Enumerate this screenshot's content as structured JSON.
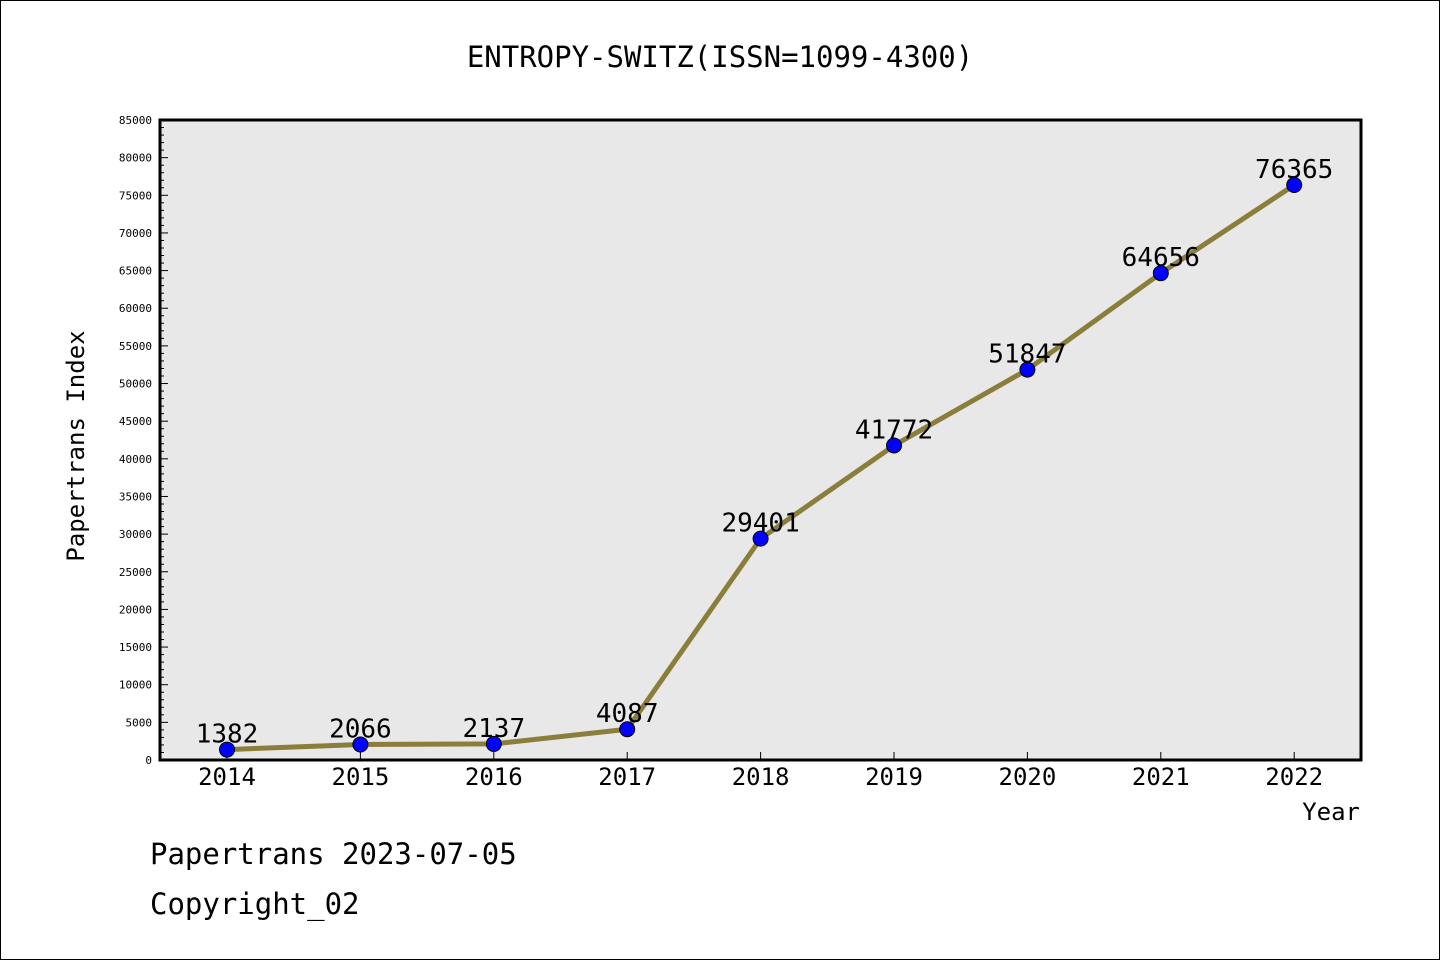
{
  "chart_data": {
    "type": "line",
    "title": "ENTROPY-SWITZ(ISSN=1099-4300)",
    "xlabel": "Year",
    "ylabel": "Papertrans Index",
    "categories": [
      "2014",
      "2015",
      "2016",
      "2017",
      "2018",
      "2019",
      "2020",
      "2021",
      "2022"
    ],
    "series": [
      {
        "values": [
          1382,
          2066,
          2137,
          4087,
          29401,
          41772,
          51847,
          64656,
          76365
        ],
        "labels": [
          "1382",
          "2066",
          "2137",
          "4087",
          "29401",
          "41772",
          "51847",
          "64656",
          "76365"
        ]
      }
    ],
    "ylim": [
      0,
      85000
    ],
    "yticks": [
      "0",
      "5000",
      "10000",
      "15000",
      "20000",
      "25000",
      "30000",
      "35000",
      "40000",
      "45000",
      "50000",
      "55000",
      "60000",
      "65000",
      "70000",
      "75000",
      "80000",
      "85000"
    ],
    "grid": false,
    "colors": {
      "line": "#8b7d3a",
      "marker": "#0000ff",
      "plot_background": "#e8e8e8"
    }
  },
  "footer": {
    "line1": "Papertrans 2023-07-05",
    "line2": "Copyright_02"
  }
}
